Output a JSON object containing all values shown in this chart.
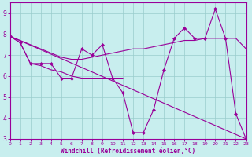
{
  "xlabel": "Windchill (Refroidissement éolien,°C)",
  "bg_color": "#c8eeee",
  "line_color": "#990099",
  "grid_color": "#99cccc",
  "text_color": "#990099",
  "xlim": [
    0,
    23
  ],
  "ylim": [
    3,
    9.5
  ],
  "yticks": [
    3,
    4,
    5,
    6,
    7,
    8,
    9
  ],
  "xticks": [
    0,
    1,
    2,
    3,
    4,
    5,
    6,
    7,
    8,
    9,
    10,
    11,
    12,
    13,
    14,
    15,
    16,
    17,
    18,
    19,
    20,
    21,
    22,
    23
  ],
  "line1_x": [
    0,
    1,
    2,
    3,
    4,
    5,
    6,
    7,
    8,
    9,
    10,
    11,
    12,
    13,
    14,
    15,
    16,
    17,
    18,
    19,
    20,
    21,
    22,
    23
  ],
  "line1_y": [
    7.9,
    7.6,
    6.6,
    6.6,
    6.6,
    5.9,
    5.9,
    7.3,
    7.0,
    7.5,
    5.9,
    5.2,
    3.3,
    3.3,
    4.4,
    6.3,
    7.8,
    8.3,
    7.8,
    7.8,
    9.2,
    7.8,
    4.2,
    3.0
  ],
  "line2_x": [
    0,
    1,
    2,
    3,
    4,
    5,
    6,
    7,
    8,
    9,
    10,
    11,
    12,
    13,
    14,
    15,
    16,
    17,
    18,
    19,
    20,
    21,
    22,
    23
  ],
  "line2_y": [
    7.9,
    7.7,
    7.5,
    7.3,
    7.1,
    6.9,
    6.8,
    6.8,
    6.9,
    7.0,
    7.1,
    7.2,
    7.3,
    7.3,
    7.4,
    7.5,
    7.6,
    7.7,
    7.7,
    7.8,
    7.8,
    7.8,
    7.8,
    7.3
  ],
  "line3_x": [
    0,
    23
  ],
  "line3_y": [
    7.9,
    3.0
  ],
  "line4_x": [
    0,
    1,
    2,
    3,
    4,
    5,
    6,
    7,
    8,
    9,
    10,
    11
  ],
  "line4_y": [
    7.9,
    7.6,
    6.6,
    6.5,
    6.3,
    6.2,
    6.0,
    5.9,
    5.9,
    5.9,
    5.9,
    5.9
  ]
}
